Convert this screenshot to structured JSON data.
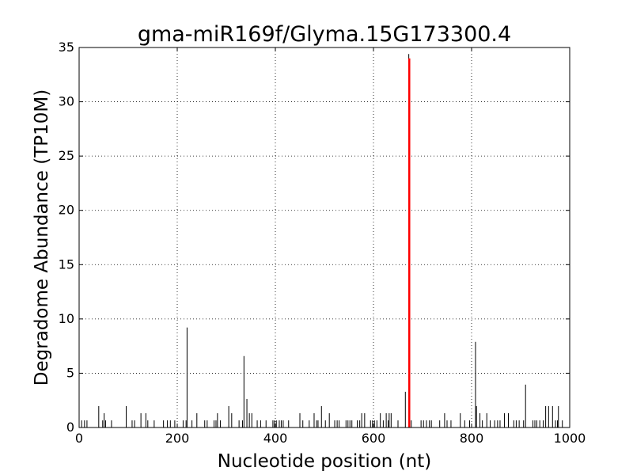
{
  "chart_data": {
    "type": "bar",
    "title": "gma-miR169f/Glyma.15G173300.4",
    "xlabel": "Nucleotide position (nt)",
    "ylabel": "Degradome Abundance (TP10M)",
    "xlim": [
      0,
      1000
    ],
    "ylim": [
      0,
      35
    ],
    "xticks": [
      0,
      200,
      400,
      600,
      800,
      1000
    ],
    "yticks": [
      0,
      5,
      10,
      15,
      20,
      25,
      30,
      35
    ],
    "grid": true,
    "colors": {
      "default_bar": "#000000",
      "highlight_bar": "#ff0000",
      "grid": "#000000",
      "background": "#ffffff"
    },
    "series": [
      {
        "values": [
          [
            5,
            0.66
          ],
          [
            11,
            0.66
          ],
          [
            16,
            0.66
          ],
          [
            40,
            1.97
          ],
          [
            48,
            0.66
          ],
          [
            51,
            1.32
          ],
          [
            54,
            0.66
          ],
          [
            66,
            0.66
          ],
          [
            96,
            1.97
          ],
          [
            108,
            0.66
          ],
          [
            113,
            0.66
          ],
          [
            126,
            1.32
          ],
          [
            136,
            1.32
          ],
          [
            140,
            0.66
          ],
          [
            153,
            0.66
          ],
          [
            172,
            0.66
          ],
          [
            180,
            0.66
          ],
          [
            186,
            0.66
          ],
          [
            195,
            0.66
          ],
          [
            212,
            0.66
          ],
          [
            218,
            0.66
          ],
          [
            220,
            9.21
          ],
          [
            230,
            0.66
          ],
          [
            240,
            1.32
          ],
          [
            256,
            0.66
          ],
          [
            261,
            0.66
          ],
          [
            275,
            0.66
          ],
          [
            279,
            0.66
          ],
          [
            282,
            1.32
          ],
          [
            288,
            0.66
          ],
          [
            305,
            1.97
          ],
          [
            311,
            1.32
          ],
          [
            326,
            0.66
          ],
          [
            333,
            0.66
          ],
          [
            336,
            6.58
          ],
          [
            342,
            2.63
          ],
          [
            347,
            1.32
          ],
          [
            352,
            1.32
          ],
          [
            363,
            0.66
          ],
          [
            370,
            0.66
          ],
          [
            381,
            0.66
          ],
          [
            395,
            0.66
          ],
          [
            398,
            0.66
          ],
          [
            402,
            0.66
          ],
          [
            408,
            0.66
          ],
          [
            412,
            0.66
          ],
          [
            416,
            0.66
          ],
          [
            427,
            0.66
          ],
          [
            450,
            1.32
          ],
          [
            456,
            0.66
          ],
          [
            469,
            0.66
          ],
          [
            479,
            1.32
          ],
          [
            484,
            0.66
          ],
          [
            487,
            0.66
          ],
          [
            494,
            1.97
          ],
          [
            502,
            0.66
          ],
          [
            510,
            1.32
          ],
          [
            521,
            0.66
          ],
          [
            526,
            0.66
          ],
          [
            530,
            0.66
          ],
          [
            544,
            0.66
          ],
          [
            548,
            0.66
          ],
          [
            552,
            0.66
          ],
          [
            556,
            0.66
          ],
          [
            567,
            0.66
          ],
          [
            572,
            0.66
          ],
          [
            576,
            1.32
          ],
          [
            582,
            1.32
          ],
          [
            594,
            0.66
          ],
          [
            598,
            0.66
          ],
          [
            602,
            0.66
          ],
          [
            607,
            0.66
          ],
          [
            614,
            1.32
          ],
          [
            620,
            0.66
          ],
          [
            626,
            1.32
          ],
          [
            630,
            0.66
          ],
          [
            632,
            1.32
          ],
          [
            636,
            1.32
          ],
          [
            650,
            0.66
          ],
          [
            665,
            3.29
          ],
          [
            677,
            0.66
          ],
          [
            697,
            0.66
          ],
          [
            702,
            0.66
          ],
          [
            708,
            0.66
          ],
          [
            714,
            0.66
          ],
          [
            718,
            0.66
          ],
          [
            735,
            0.66
          ],
          [
            745,
            1.32
          ],
          [
            750,
            0.66
          ],
          [
            758,
            0.66
          ],
          [
            777,
            1.32
          ],
          [
            786,
            0.66
          ],
          [
            796,
            0.66
          ],
          [
            808,
            7.89
          ],
          [
            810,
            1.97
          ],
          [
            817,
            1.32
          ],
          [
            822,
            0.66
          ],
          [
            831,
            1.32
          ],
          [
            838,
            0.66
          ],
          [
            847,
            0.66
          ],
          [
            853,
            0.66
          ],
          [
            858,
            0.66
          ],
          [
            867,
            1.32
          ],
          [
            875,
            1.32
          ],
          [
            886,
            0.66
          ],
          [
            891,
            0.66
          ],
          [
            897,
            0.66
          ],
          [
            906,
            0.66
          ],
          [
            910,
            3.95
          ],
          [
            925,
            0.66
          ],
          [
            929,
            0.66
          ],
          [
            933,
            0.66
          ],
          [
            939,
            0.66
          ],
          [
            946,
            0.66
          ],
          [
            951,
            1.97
          ],
          [
            957,
            1.97
          ],
          [
            965,
            1.97
          ],
          [
            971,
            0.66
          ],
          [
            975,
            0.66
          ],
          [
            977,
            1.97
          ],
          [
            985,
            0.66
          ]
        ]
      },
      {
        "values": [
          [
            673,
            34.0
          ]
        ]
      }
    ],
    "highlight_extra_tick": [
      672,
      34.4
    ]
  }
}
